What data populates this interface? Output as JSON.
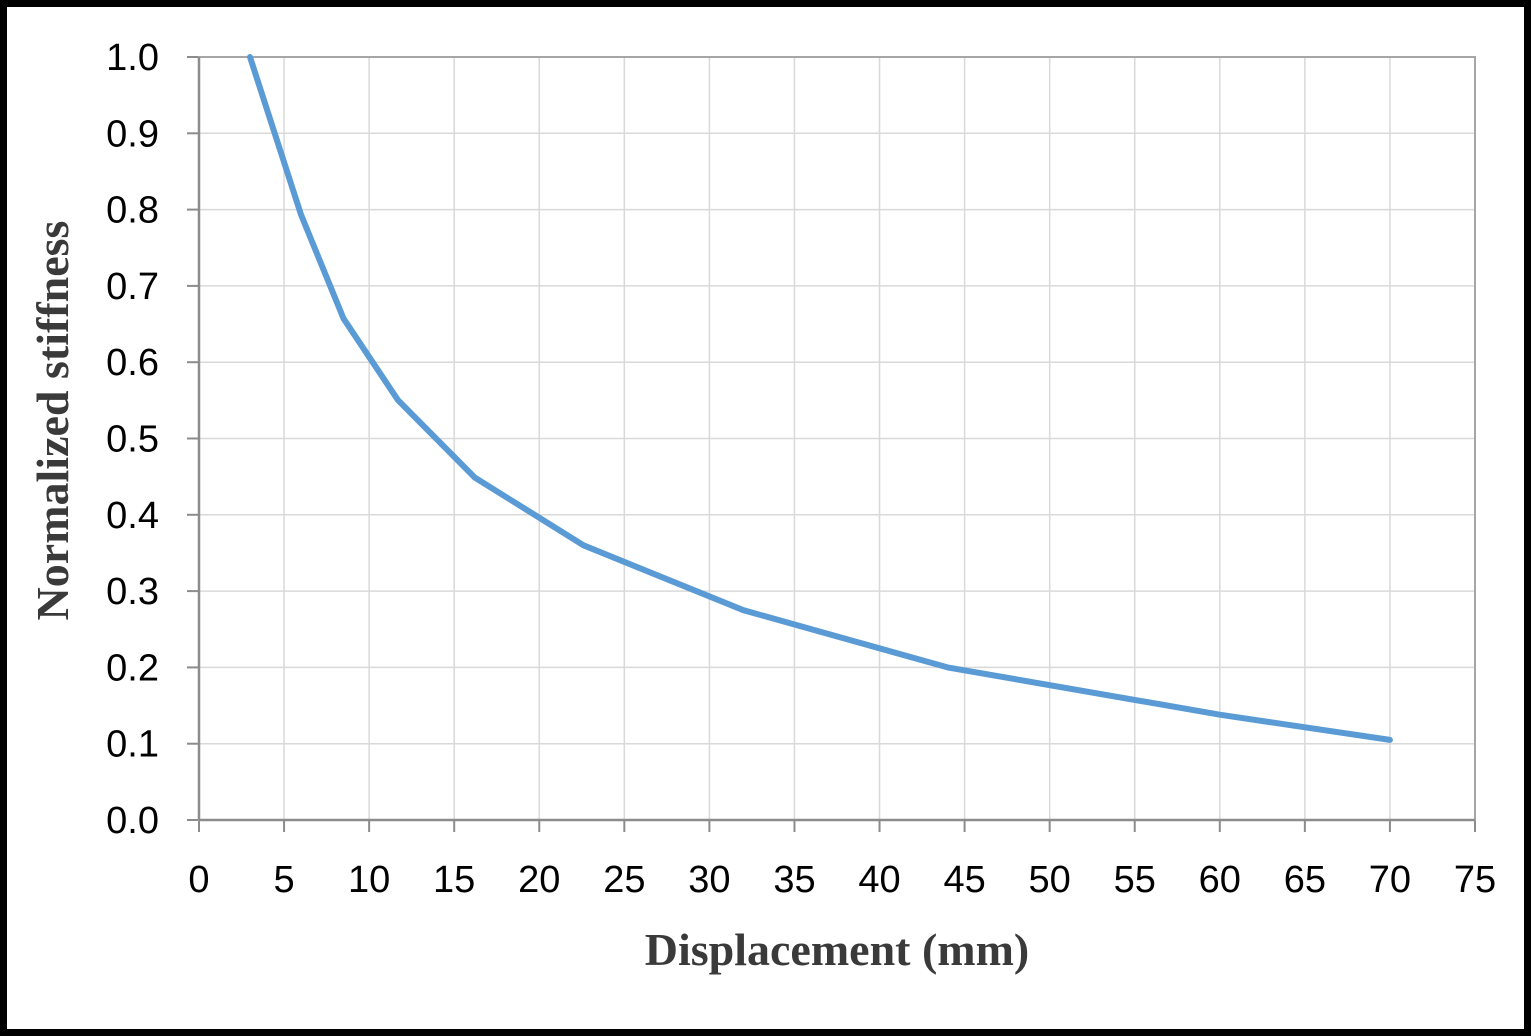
{
  "chart_data": {
    "type": "line",
    "title": "",
    "xlabel": "Displacement  (mm)",
    "ylabel": "Normalized  stiffness",
    "xlim": [
      0,
      75
    ],
    "ylim": [
      0,
      1.0
    ],
    "x_ticks": [
      "0",
      "5",
      "10",
      "15",
      "20",
      "25",
      "30",
      "35",
      "40",
      "45",
      "50",
      "55",
      "60",
      "65",
      "70",
      "75"
    ],
    "y_ticks": [
      "0.0",
      "0.1",
      "0.2",
      "0.3",
      "0.4",
      "0.5",
      "0.6",
      "0.7",
      "0.8",
      "0.9",
      "1.0"
    ],
    "grid": true,
    "legend": "none",
    "series": [
      {
        "color": "#5b9bd5",
        "x": [
          3,
          6,
          8.5,
          11.7,
          16.2,
          22.6,
          32,
          44,
          60,
          70
        ],
        "y": [
          1.0,
          0.793,
          0.657,
          0.55,
          0.449,
          0.36,
          0.275,
          0.2,
          0.138,
          0.105
        ]
      }
    ]
  }
}
